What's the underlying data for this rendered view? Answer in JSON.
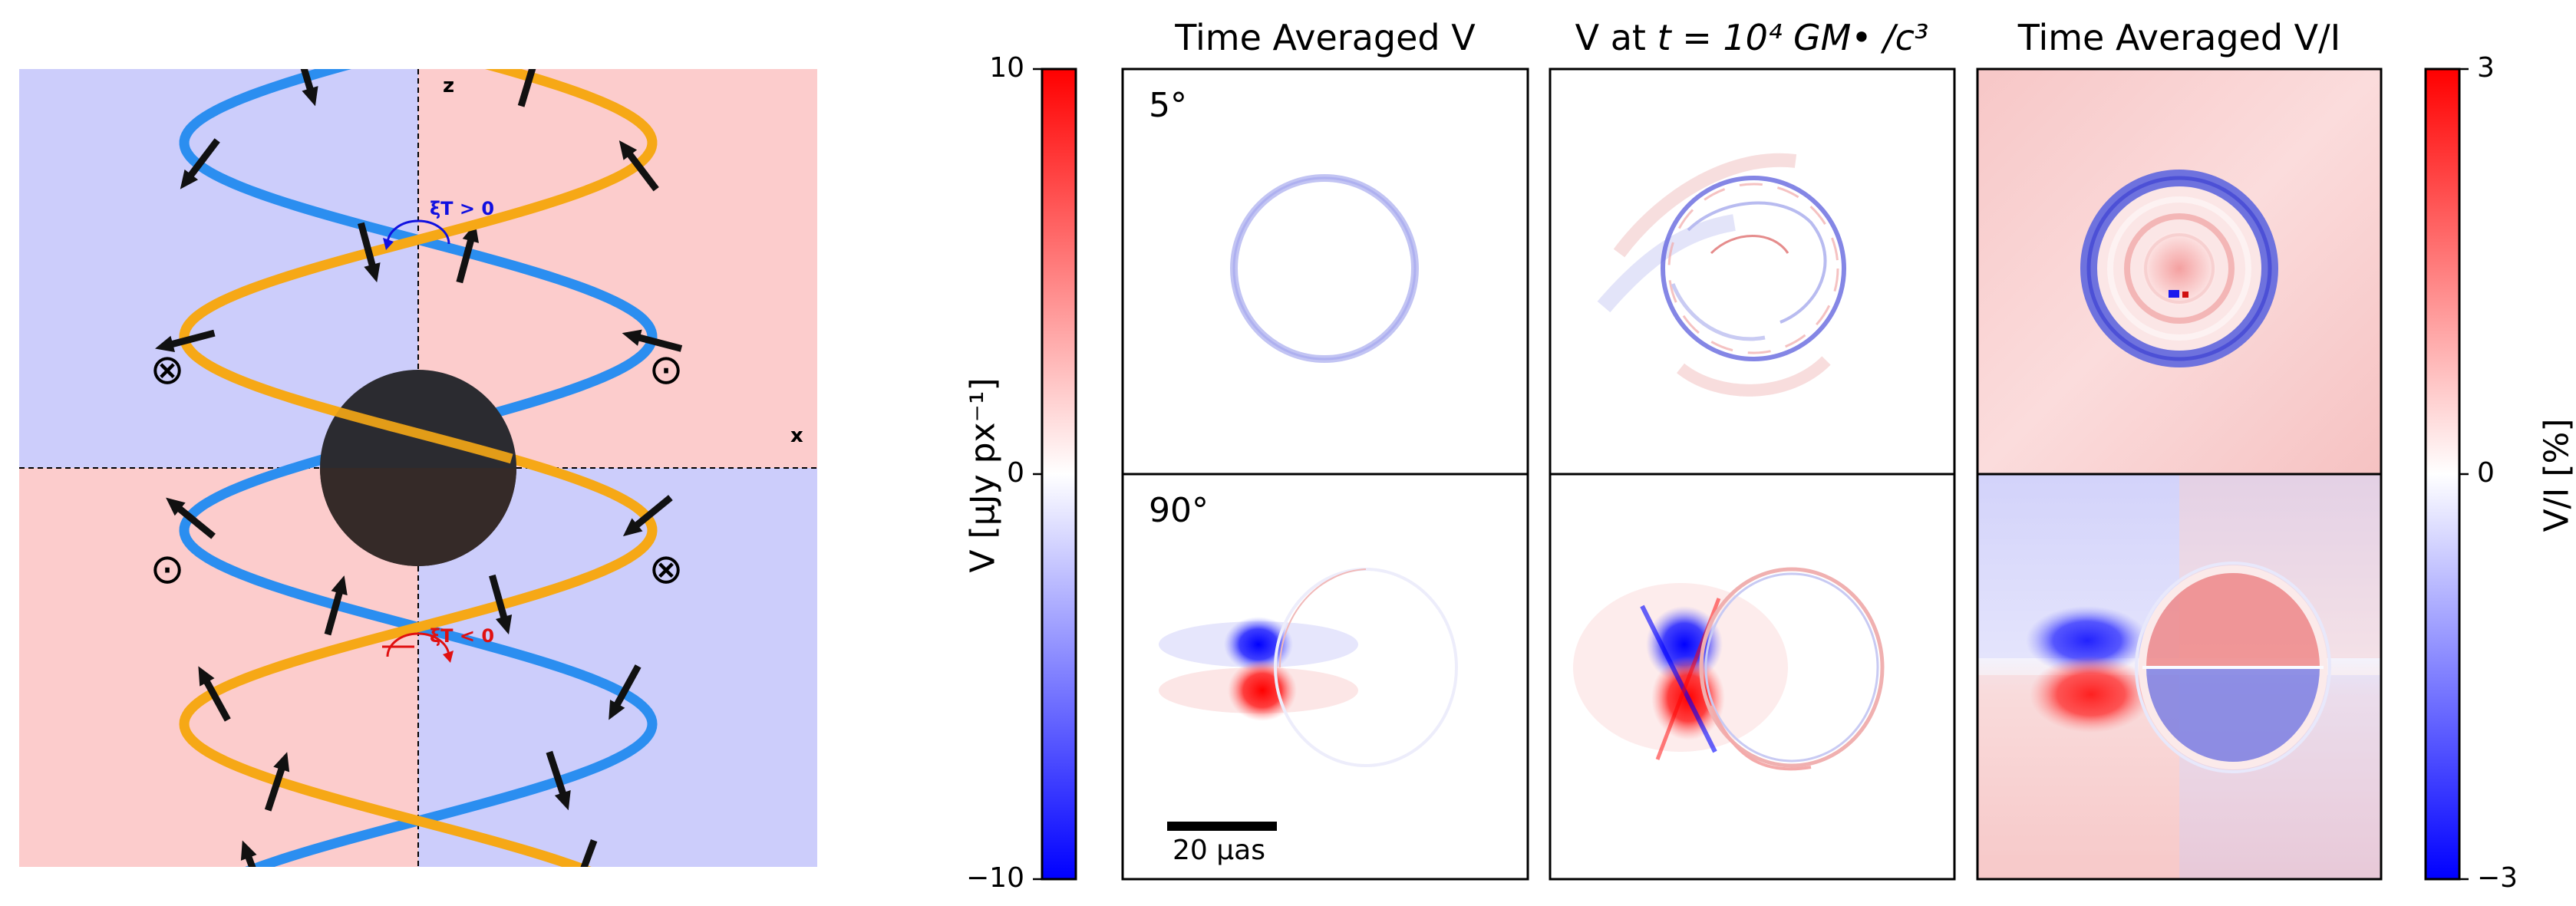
{
  "diagram": {
    "axis_x_label": "x",
    "axis_z_label": "z",
    "xi_positive": "ξT > 0",
    "xi_negative": "ξT < 0",
    "symbol_into_page": "⊗",
    "symbol_out_of_page": "⊙",
    "colors": {
      "blue_region": "#cccdfb",
      "red_region": "#fccccc",
      "blue_strand": "#2b8ef0",
      "orange_strand": "#f6a816",
      "black_hole": "#2b2b30",
      "black_hole_lower": "#352a28"
    }
  },
  "titles": {
    "col1": "Time Averaged V",
    "col2_prefix": "V at ",
    "col2_math": "t = 10⁴ GM• /c³",
    "col3": "Time Averaged V/I"
  },
  "panels": {
    "row1_label": "5°",
    "row2_label": "90°",
    "scale_bar": "20 μas"
  },
  "colorbar_left": {
    "label": "V [μJy px⁻¹]",
    "ticks": [
      "10",
      "0",
      "−10"
    ]
  },
  "colorbar_right": {
    "label": "V/I [%]",
    "ticks": [
      "3",
      "0",
      "−3"
    ]
  }
}
